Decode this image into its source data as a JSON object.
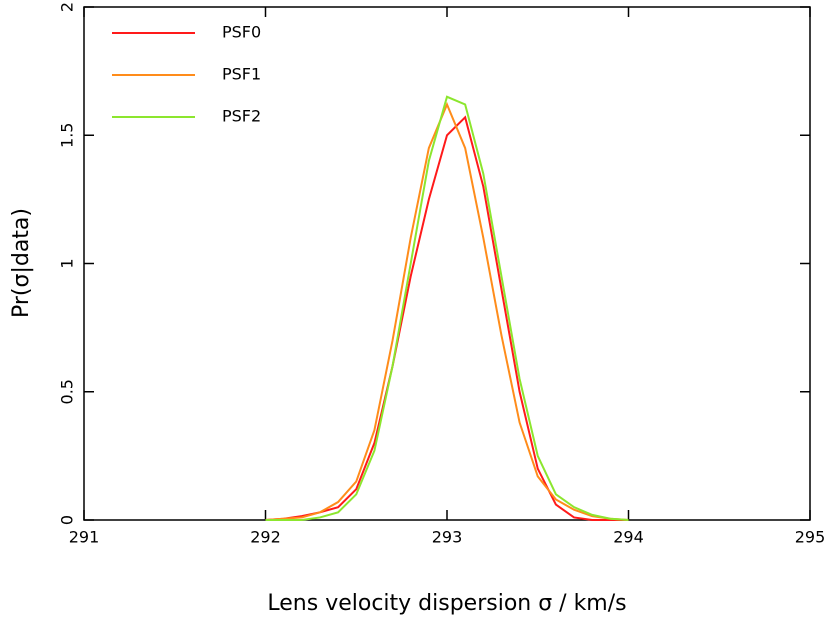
{
  "chart_data": {
    "type": "line",
    "xlabel": "Lens velocity dispersion σ / km/s",
    "ylabel": "Pr(σ|data)",
    "x": [
      292,
      292.1,
      292.2,
      292.3,
      292.4,
      292.5,
      292.6,
      292.7,
      292.8,
      292.9,
      293,
      293.1,
      293.2,
      293.3,
      293.4,
      293.5,
      293.6,
      293.7,
      293.8,
      293.9,
      294
    ],
    "series": [
      {
        "name": "PSF0",
        "color": "#ff1a1a",
        "values": [
          0,
          0.005,
          0.015,
          0.03,
          0.05,
          0.12,
          0.3,
          0.6,
          0.95,
          1.25,
          1.5,
          1.57,
          1.3,
          0.9,
          0.5,
          0.2,
          0.06,
          0.01,
          0,
          0,
          0
        ]
      },
      {
        "name": "PSF1",
        "color": "#ff8c1a",
        "values": [
          0,
          0.005,
          0.01,
          0.03,
          0.07,
          0.15,
          0.35,
          0.7,
          1.1,
          1.45,
          1.62,
          1.45,
          1.1,
          0.72,
          0.38,
          0.17,
          0.08,
          0.04,
          0.015,
          0.005,
          0
        ]
      },
      {
        "name": "PSF2",
        "color": "#8ce62e",
        "values": [
          0,
          0,
          0,
          0.01,
          0.03,
          0.1,
          0.27,
          0.6,
          1.0,
          1.4,
          1.65,
          1.62,
          1.35,
          0.95,
          0.55,
          0.25,
          0.1,
          0.05,
          0.02,
          0.005,
          0
        ]
      }
    ],
    "xlim": [
      291,
      295
    ],
    "xticks": [
      291,
      292,
      293,
      294,
      295
    ],
    "ylim": [
      0,
      2
    ],
    "yticks": [
      0,
      0.5,
      1,
      1.5,
      2
    ],
    "legend": "upper-left"
  }
}
